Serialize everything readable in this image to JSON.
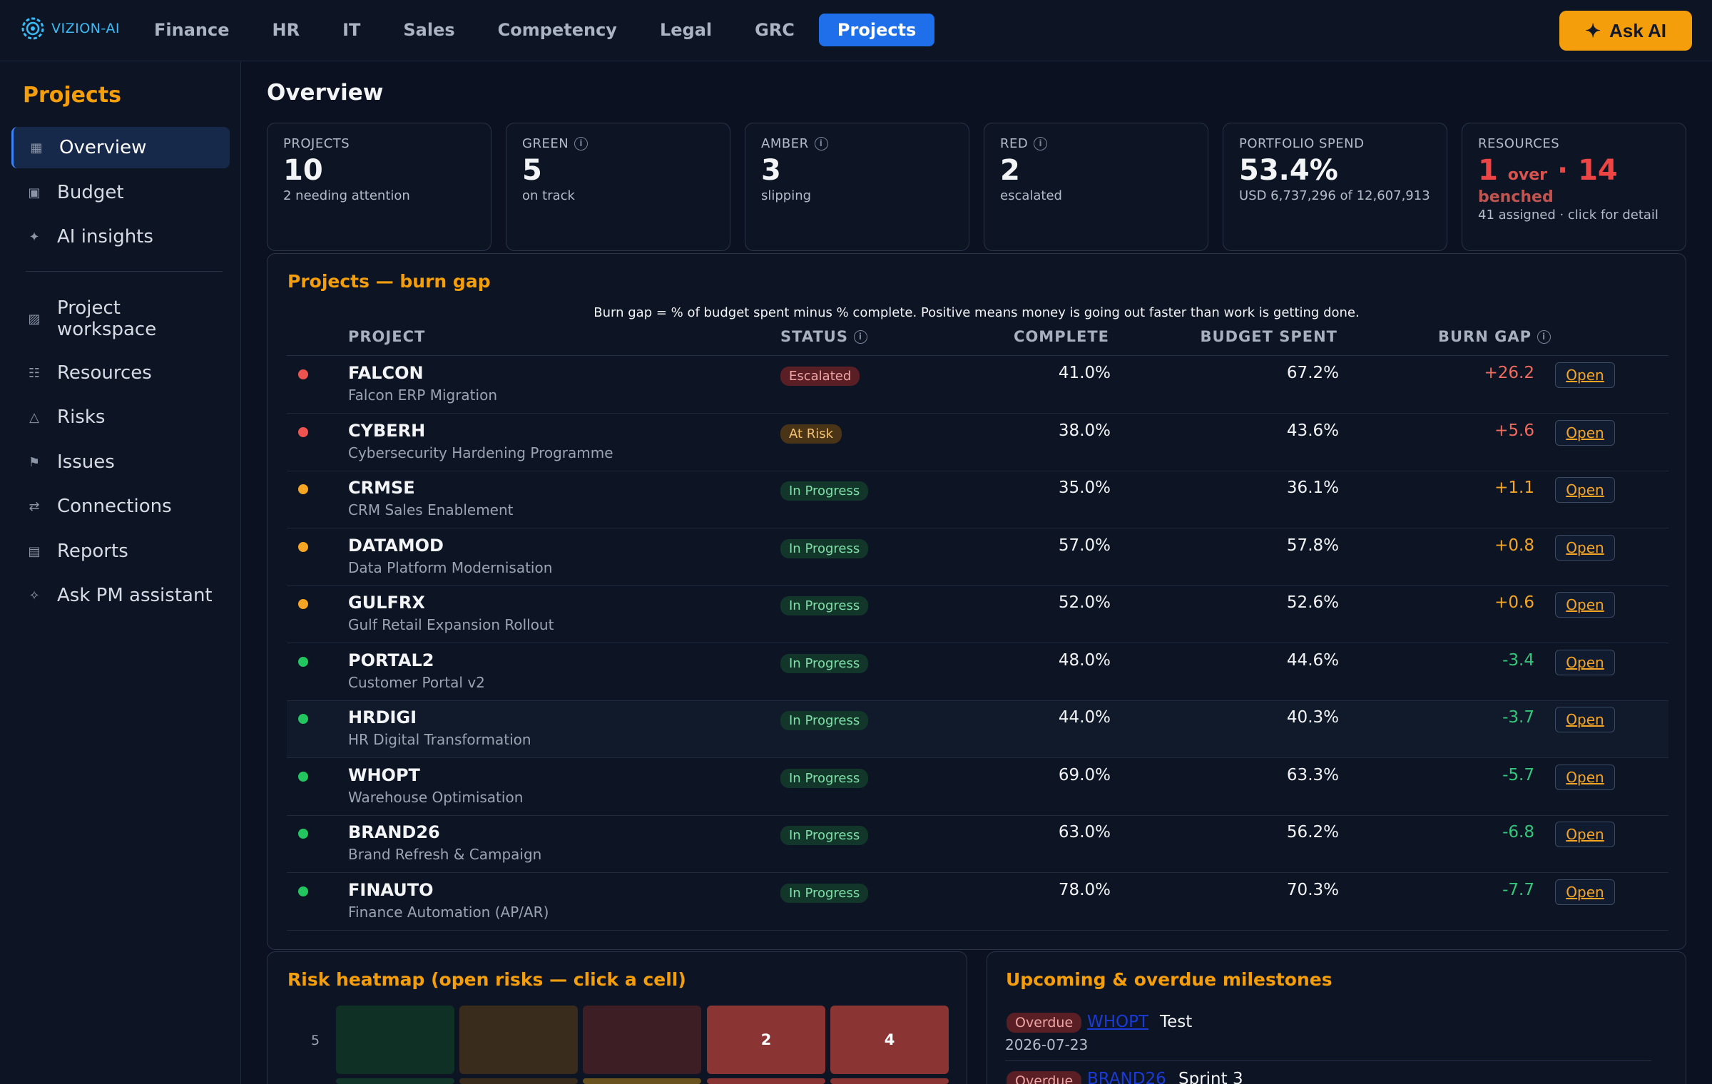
{
  "brand": {
    "logo_text": "VIZION-AI"
  },
  "nav": {
    "tabs": [
      "Finance",
      "HR",
      "IT",
      "Sales",
      "Competency",
      "Legal",
      "GRC",
      "Projects"
    ],
    "active": "Projects",
    "ask_ai": "Ask AI"
  },
  "sidebar": {
    "title": "Projects",
    "items": [
      {
        "label": "Overview",
        "icon": "grid-icon"
      },
      {
        "label": "Budget",
        "icon": "square-icon"
      },
      {
        "label": "AI insights",
        "icon": "sparkle-icon"
      },
      {
        "label": "Project workspace",
        "icon": "hatched-square-icon"
      },
      {
        "label": "Resources",
        "icon": "list-icon"
      },
      {
        "label": "Risks",
        "icon": "triangle-icon"
      },
      {
        "label": "Issues",
        "icon": "flag-icon"
      },
      {
        "label": "Connections",
        "icon": "arrows-icon"
      },
      {
        "label": "Reports",
        "icon": "report-icon"
      },
      {
        "label": "Ask PM assistant",
        "icon": "sparkle-outline-icon"
      }
    ]
  },
  "main": {
    "title": "Overview"
  },
  "kpis": {
    "projects": {
      "label": "PROJECTS",
      "value": "10",
      "sub": "2 needing attention"
    },
    "green": {
      "label": "GREEN",
      "value": "5",
      "sub": "on track"
    },
    "amber": {
      "label": "AMBER",
      "value": "3",
      "sub": "slipping"
    },
    "red": {
      "label": "RED",
      "value": "2",
      "sub": "escalated"
    },
    "spend": {
      "label": "PORTFOLIO SPEND",
      "value": "53.4%",
      "sub": "USD 6,737,296 of 12,607,913"
    },
    "resources": {
      "label": "RESOURCES",
      "over_count": "1",
      "over_word": "over",
      "dot": "·",
      "benched_count": "14",
      "benched_word": "benched",
      "sub": "41 assigned · click for detail"
    }
  },
  "burn": {
    "title": "Projects — burn gap",
    "note": "Burn gap = % of budget spent minus % complete. Positive means money is going out faster than work is getting done.",
    "headers": {
      "project": "PROJECT",
      "status": "STATUS",
      "complete": "COMPLETE",
      "spent": "BUDGET SPENT",
      "gap": "BURN GAP"
    },
    "open_label": "Open",
    "colors": {
      "red": "#ef5350",
      "amber": "#f5a524",
      "green": "#22c55e"
    },
    "rows": [
      {
        "code": "FALCON",
        "name": "Falcon ERP Migration",
        "status": "Escalated",
        "complete": "41.0%",
        "spent": "67.2%",
        "gap": "+26.2",
        "rag": "red"
      },
      {
        "code": "CYBERH",
        "name": "Cybersecurity Hardening Programme",
        "status": "At Risk",
        "complete": "38.0%",
        "spent": "43.6%",
        "gap": "+5.6",
        "rag": "red"
      },
      {
        "code": "CRMSE",
        "name": "CRM Sales Enablement",
        "status": "In Progress",
        "complete": "35.0%",
        "spent": "36.1%",
        "gap": "+1.1",
        "rag": "amber"
      },
      {
        "code": "DATAMOD",
        "name": "Data Platform Modernisation",
        "status": "In Progress",
        "complete": "57.0%",
        "spent": "57.8%",
        "gap": "+0.8",
        "rag": "amber"
      },
      {
        "code": "GULFRX",
        "name": "Gulf Retail Expansion Rollout",
        "status": "In Progress",
        "complete": "52.0%",
        "spent": "52.6%",
        "gap": "+0.6",
        "rag": "amber"
      },
      {
        "code": "PORTAL2",
        "name": "Customer Portal v2",
        "status": "In Progress",
        "complete": "48.0%",
        "spent": "44.6%",
        "gap": "-3.4",
        "rag": "green"
      },
      {
        "code": "HRDIGI",
        "name": "HR Digital Transformation",
        "status": "In Progress",
        "complete": "44.0%",
        "spent": "40.3%",
        "gap": "-3.7",
        "rag": "green"
      },
      {
        "code": "WHOPT",
        "name": "Warehouse Optimisation",
        "status": "In Progress",
        "complete": "69.0%",
        "spent": "63.3%",
        "gap": "-5.7",
        "rag": "green"
      },
      {
        "code": "BRAND26",
        "name": "Brand Refresh & Campaign",
        "status": "In Progress",
        "complete": "63.0%",
        "spent": "56.2%",
        "gap": "-6.8",
        "rag": "green"
      },
      {
        "code": "FINAUTO",
        "name": "Finance Automation (AP/AR)",
        "status": "In Progress",
        "complete": "78.0%",
        "spent": "70.3%",
        "gap": "-7.7",
        "rag": "green"
      }
    ]
  },
  "heatmap": {
    "title": "Risk heatmap (open risks — click a cell)",
    "row_label": "5",
    "cells": [
      {
        "value": "",
        "color": "#0f3025"
      },
      {
        "value": "",
        "color": "#3a2c1c"
      },
      {
        "value": "",
        "color": "#3c1e24"
      },
      {
        "value": "2",
        "color": "#8b3434"
      },
      {
        "value": "4",
        "color": "#8b3434"
      }
    ],
    "next_row_colors": [
      "#12372a",
      "#3a2c1c",
      "#6b5320",
      "#8b3434",
      "#8b3434"
    ]
  },
  "milestones": {
    "title": "Upcoming & overdue milestones",
    "items": [
      {
        "badge": "Overdue",
        "project": "WHOPT",
        "name": "Test",
        "date": "2026-07-23"
      },
      {
        "badge": "Overdue",
        "project": "BRAND26",
        "name": "Sprint 3",
        "date": ""
      }
    ]
  }
}
